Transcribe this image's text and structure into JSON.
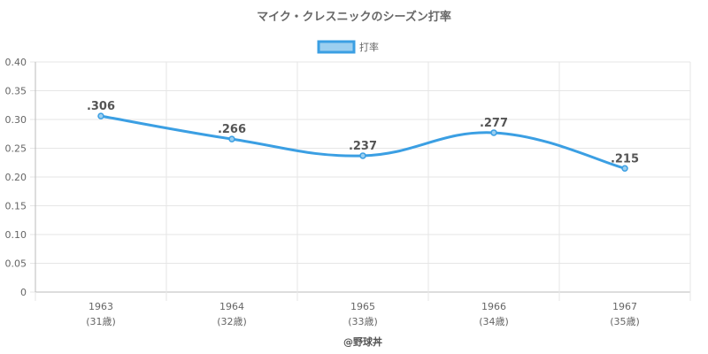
{
  "chart_data": {
    "type": "line",
    "title": "マイク・クレスニックのシーズン打率",
    "legend": {
      "label": "打率",
      "position": "top"
    },
    "categories": [
      "1963",
      "1964",
      "1965",
      "1966",
      "1967"
    ],
    "category_sublabels": [
      "(31歳)",
      "(32歳)",
      "(33歳)",
      "(34歳)",
      "(35歳)"
    ],
    "series": [
      {
        "name": "打率",
        "values": [
          0.306,
          0.266,
          0.237,
          0.277,
          0.215
        ],
        "labels": [
          ".306",
          ".266",
          ".237",
          ".277",
          ".215"
        ]
      }
    ],
    "ylim": [
      0,
      0.4
    ],
    "yticks": [
      "0",
      "0.05",
      "0.10",
      "0.15",
      "0.20",
      "0.25",
      "0.30",
      "0.35",
      "0.40"
    ],
    "grid": true,
    "colors": {
      "line": "#3b9fe3",
      "fill": "#9ccff0",
      "grid": "#e6e6e6",
      "axis": "#bbbbbb"
    }
  },
  "footer": "@野球丼"
}
